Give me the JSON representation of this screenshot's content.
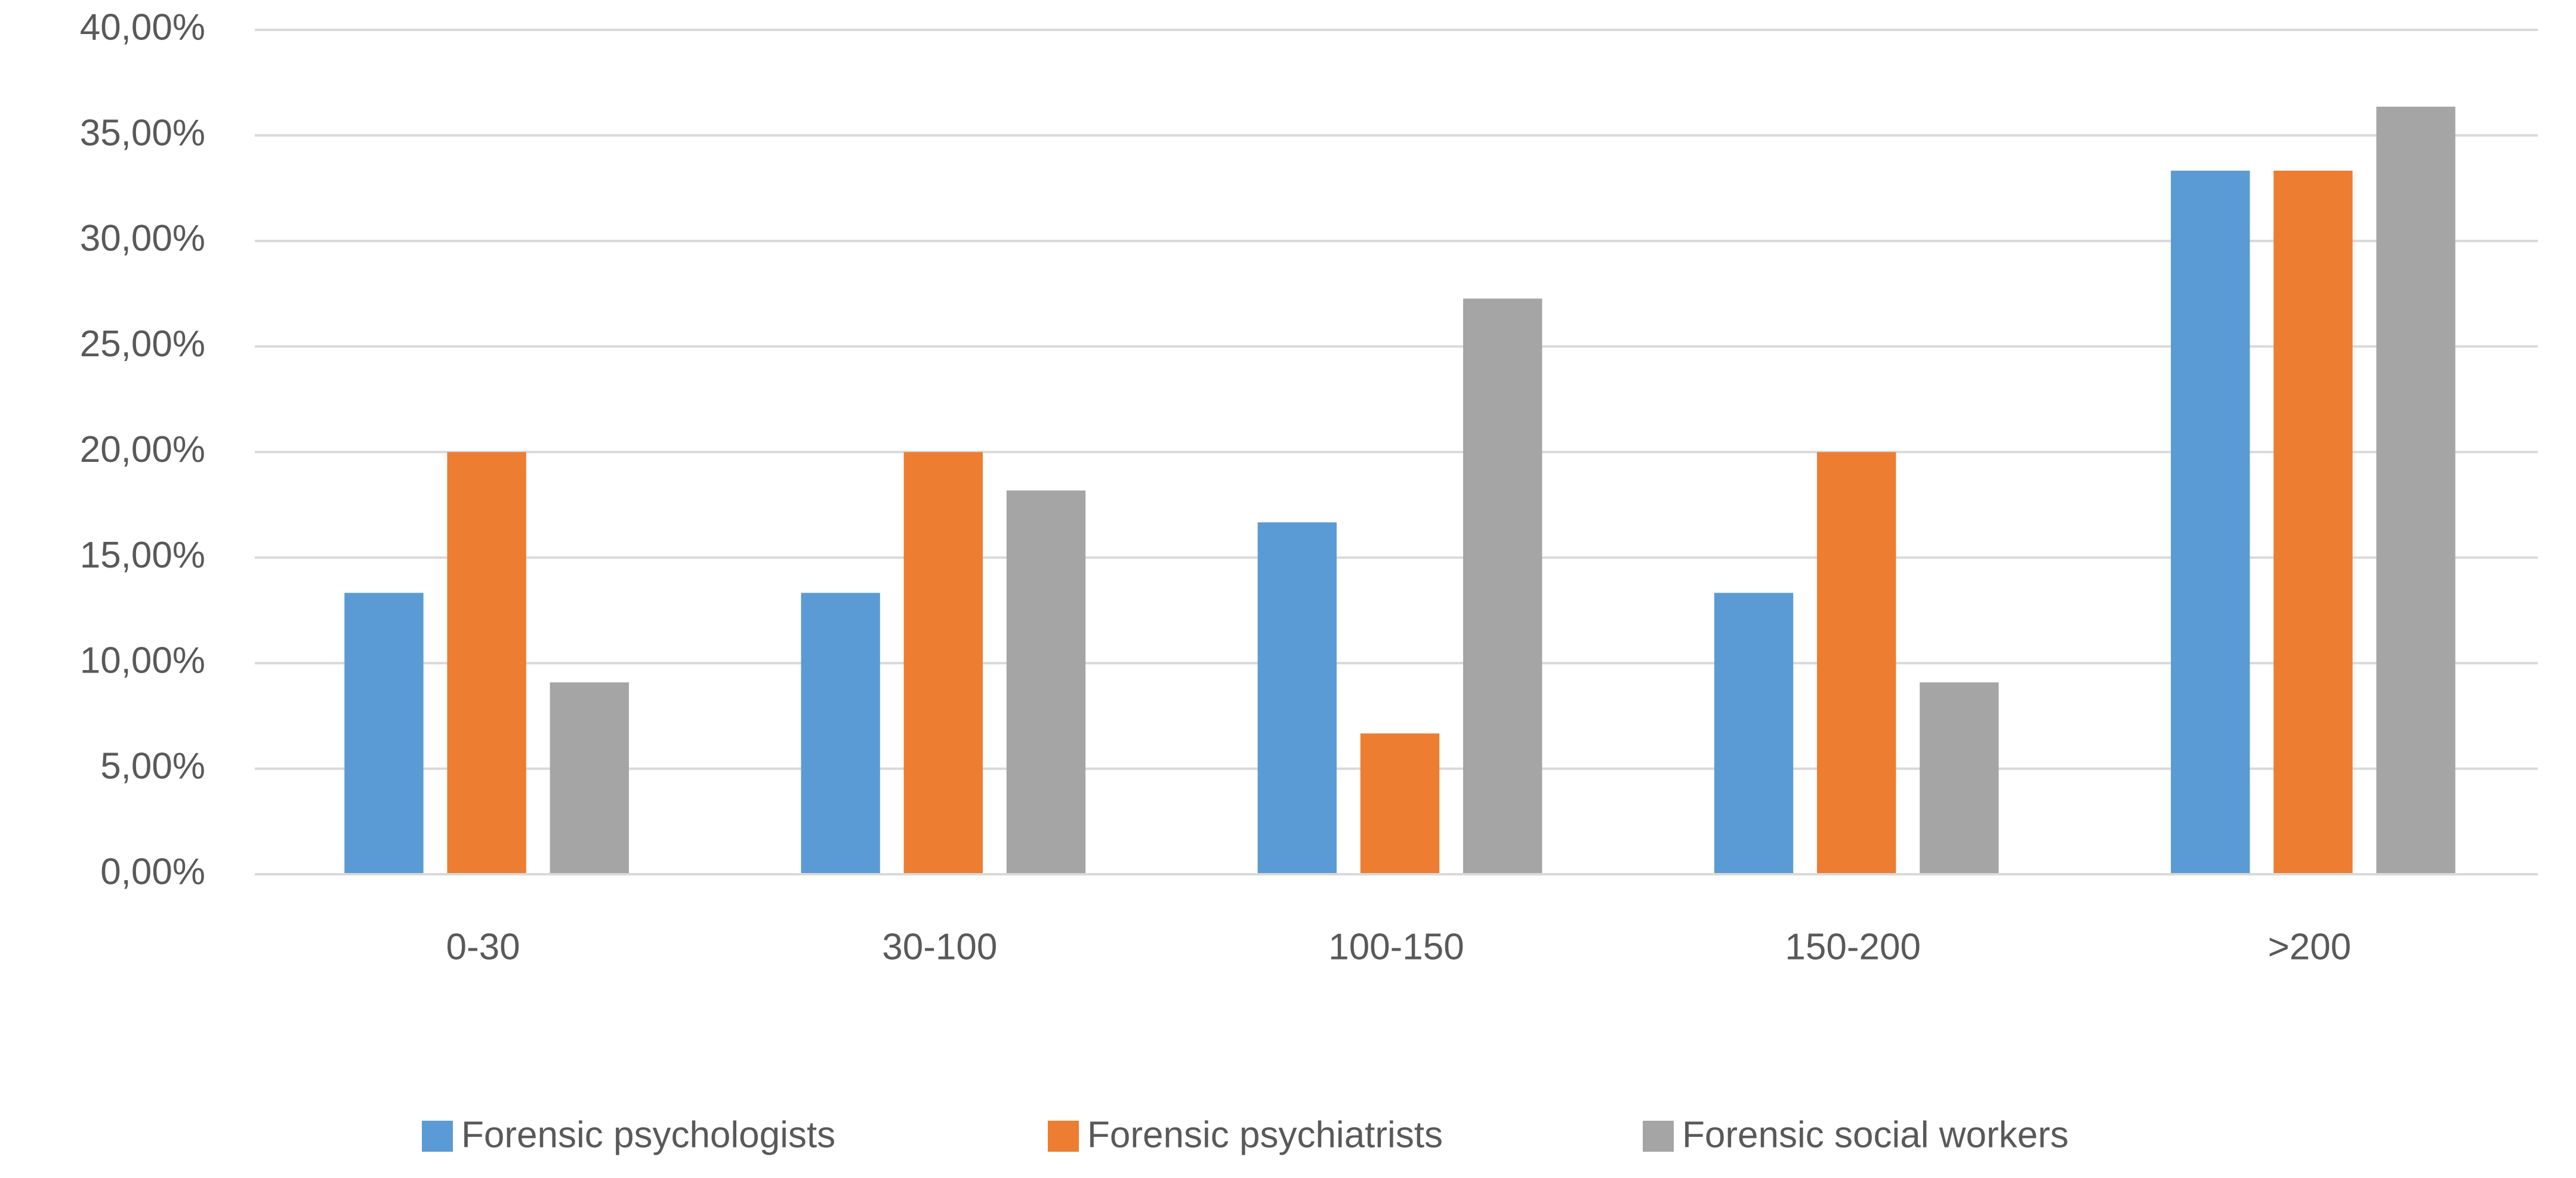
{
  "chart_data": {
    "type": "bar",
    "categories": [
      "0-30",
      "30-100",
      "100-150",
      "150-200",
      ">200"
    ],
    "series": [
      {
        "name": "Forensic psychologists",
        "color": "#5b9bd5",
        "values": [
          13.33,
          13.33,
          16.67,
          13.33,
          33.33
        ]
      },
      {
        "name": "Forensic psychiatrists",
        "color": "#ed7d31",
        "values": [
          20,
          20,
          6.67,
          20,
          33.33
        ]
      },
      {
        "name": "Forensic social workers",
        "color": "#a5a5a5",
        "values": [
          9.09,
          18.18,
          27.27,
          9.09,
          36.36
        ]
      }
    ],
    "ylim": [
      0,
      40
    ],
    "yticks": [
      {
        "value": 0,
        "label": "0,00%"
      },
      {
        "value": 5,
        "label": "5,00%"
      },
      {
        "value": 10,
        "label": "10,00%"
      },
      {
        "value": 15,
        "label": "15,00%"
      },
      {
        "value": 20,
        "label": "20,00%"
      },
      {
        "value": 25,
        "label": "25,00%"
      },
      {
        "value": 30,
        "label": "30,00%"
      },
      {
        "value": 35,
        "label": "35,00%"
      },
      {
        "value": 40,
        "label": "40,00%"
      }
    ],
    "grid": true,
    "legend": "bottom"
  }
}
